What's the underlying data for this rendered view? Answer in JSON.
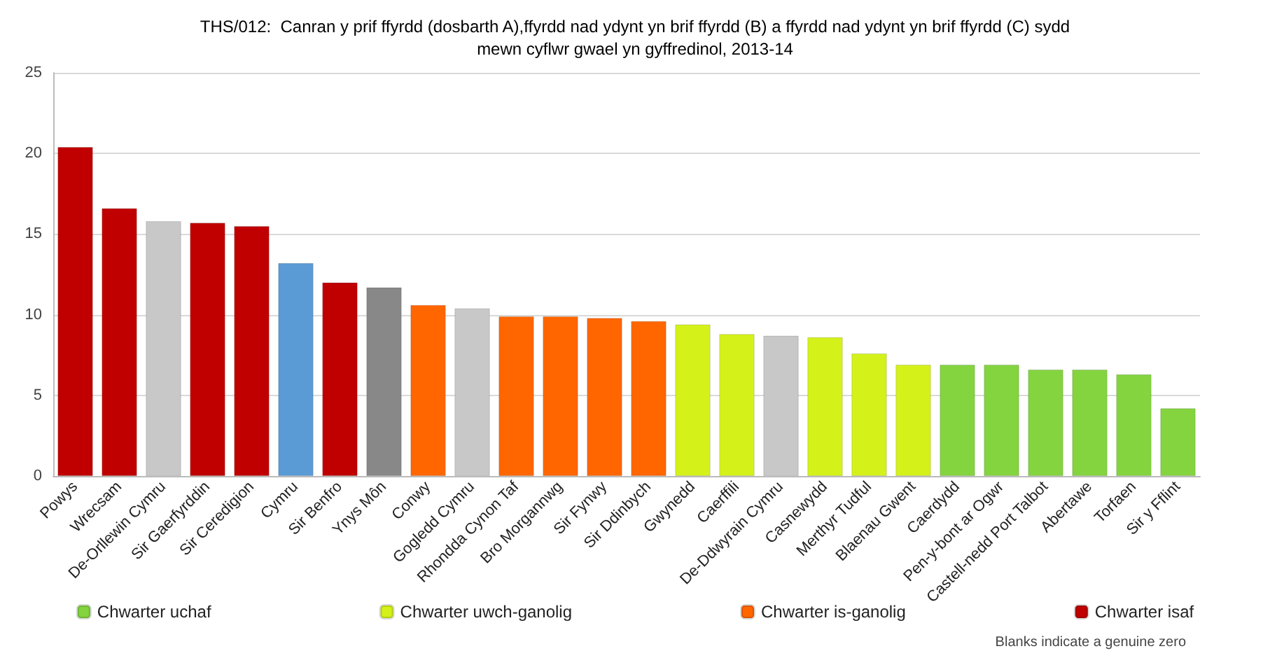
{
  "chart_data": {
    "type": "bar",
    "title": "THS/012:  Canran y prif ffyrdd (dosbarth A),ffyrdd nad ydynt yn brif ffyrdd (B) a ffyrdd nad ydynt yn brif ffyrdd (C) sydd\nmewn cyflwr gwael yn gyffredinol, 2013-14",
    "categories": [
      "Powys",
      "Wrecsam",
      "De-Orllewin Cymru",
      "Sir Gaerfyrddin",
      "Sir Ceredigion",
      "Cymru",
      "Sir Benfro",
      "Ynys Môn",
      "Conwy",
      "Gogledd Cymru",
      "Rhondda Cynon Taf",
      "Bro Morgannwg",
      "Sir Fynwy",
      "Sir Ddinbych",
      "Gwynedd",
      "Caerffili",
      "De-Ddwyrain Cymru",
      "Casnewydd",
      "Merthyr Tudful",
      "Blaenau Gwent",
      "Caerdydd",
      "Pen-y-bont ar Ogwr",
      "Castell-nedd Port Talbot",
      "Abertawe",
      "Torfaen",
      "Sir y Fflint"
    ],
    "stacked": true,
    "series": [
      {
        "name": "Chwarter uchaf",
        "color": "#84d440",
        "values": [
          null,
          null,
          null,
          null,
          null,
          null,
          null,
          null,
          null,
          null,
          null,
          null,
          null,
          null,
          null,
          null,
          null,
          null,
          null,
          null,
          6.9,
          6.9,
          6.6,
          6.6,
          6.3,
          4.2
        ]
      },
      {
        "name": "Chwarter uwch-ganolig",
        "color": "#d4f21a",
        "values": [
          null,
          null,
          null,
          null,
          null,
          null,
          null,
          null,
          null,
          null,
          null,
          null,
          null,
          null,
          9.4,
          8.8,
          null,
          8.6,
          7.6,
          6.9,
          null,
          null,
          null,
          null,
          null,
          null
        ]
      },
      {
        "name": "Chwarter is-ganolig",
        "color": "#ff6600",
        "values": [
          null,
          null,
          null,
          null,
          null,
          null,
          null,
          null,
          10.6,
          null,
          9.9,
          9.9,
          9.8,
          9.6,
          null,
          null,
          null,
          null,
          null,
          null,
          null,
          null,
          null,
          null,
          null,
          null
        ]
      },
      {
        "name": "Chwarter isaf",
        "color": "#c00000",
        "values": [
          20.4,
          16.6,
          null,
          15.7,
          15.5,
          null,
          12.0,
          null,
          null,
          null,
          null,
          null,
          null,
          null,
          null,
          null,
          null,
          null,
          null,
          null,
          null,
          null,
          null,
          null,
          null,
          null
        ]
      },
      {
        "color": "#c8c8c8",
        "values": [
          null,
          null,
          15.8,
          null,
          null,
          null,
          null,
          null,
          null,
          10.4,
          null,
          null,
          null,
          null,
          null,
          null,
          8.7,
          null,
          null,
          null,
          null,
          null,
          null,
          null,
          null,
          null
        ]
      },
      {
        "color": "#5b9bd5",
        "values": [
          null,
          null,
          null,
          null,
          null,
          13.2,
          null,
          null,
          null,
          null,
          null,
          null,
          null,
          null,
          null,
          null,
          null,
          null,
          null,
          null,
          null,
          null,
          null,
          null,
          null,
          null
        ]
      },
      {
        "color": "#888888",
        "values": [
          null,
          null,
          null,
          null,
          null,
          null,
          null,
          11.7,
          null,
          null,
          null,
          null,
          null,
          null,
          null,
          null,
          null,
          null,
          null,
          null,
          null,
          null,
          null,
          null,
          null,
          null
        ]
      }
    ],
    "ylim": [
      0,
      25
    ],
    "yticks": [
      0,
      5,
      10,
      15,
      20,
      25
    ],
    "grid": "y",
    "legend": "bottom",
    "annotations": [
      "Blanks indicate a genuine zero"
    ]
  }
}
